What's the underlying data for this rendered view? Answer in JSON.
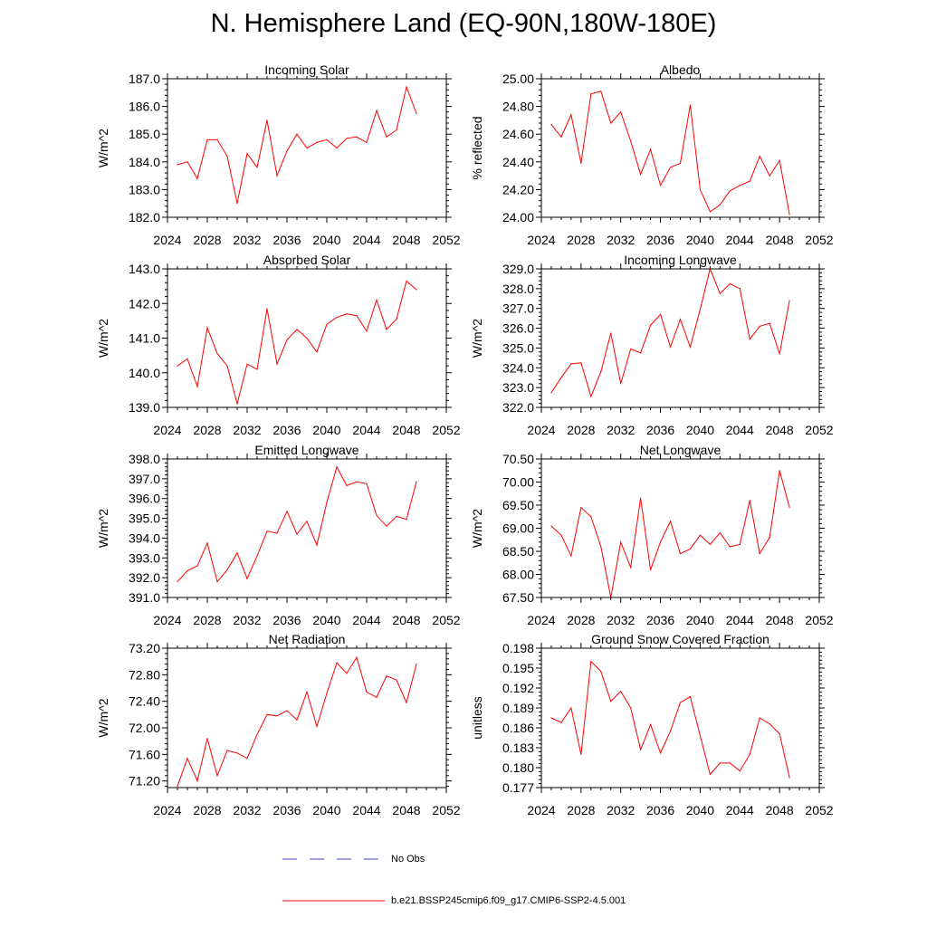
{
  "figure": {
    "title": "N. Hemisphere Land (EQ-90N,180W-180E)"
  },
  "colors": {
    "model_line": "#ff0000",
    "obs_line": "#3f3fc8"
  },
  "legend": {
    "obs_label": "No Obs",
    "model_label": "b.e21.BSSP245cmip6.f09_g17.CMIP6-SSP2-4.5.001"
  },
  "chart_data": [
    {
      "type": "line",
      "title": "Incoming Solar",
      "xlabel": "",
      "ylabel": "W/m^2",
      "xlim": [
        2024,
        2052
      ],
      "ylim": [
        182.0,
        187.0
      ],
      "x_ticks": [
        2024,
        2028,
        2032,
        2036,
        2040,
        2044,
        2048,
        2052
      ],
      "y_ticks": [
        "182.0",
        "183.0",
        "184.0",
        "185.0",
        "186.0",
        "187.0"
      ],
      "x": [
        2025,
        2026,
        2027,
        2028,
        2029,
        2030,
        2031,
        2032,
        2033,
        2034,
        2035,
        2036,
        2037,
        2038,
        2039,
        2040,
        2041,
        2042,
        2043,
        2044,
        2045,
        2046,
        2047,
        2048,
        2049
      ],
      "series": [
        {
          "name": "b.e21.BSSP245cmip6.f09_g17.CMIP6-SSP2-4.5.001",
          "values": [
            183.9,
            184.0,
            183.4,
            184.8,
            184.8,
            184.2,
            182.5,
            184.3,
            183.8,
            185.5,
            183.5,
            184.4,
            185.0,
            184.5,
            184.7,
            184.8,
            184.5,
            184.85,
            184.9,
            184.7,
            185.85,
            184.9,
            185.15,
            186.7,
            185.75
          ]
        }
      ]
    },
    {
      "type": "line",
      "title": "Albedo",
      "xlabel": "",
      "ylabel": "% reflected",
      "xlim": [
        2024,
        2052
      ],
      "ylim": [
        24.0,
        25.0
      ],
      "x_ticks": [
        2024,
        2028,
        2032,
        2036,
        2040,
        2044,
        2048,
        2052
      ],
      "y_ticks": [
        "24.00",
        "24.20",
        "24.40",
        "24.60",
        "24.80",
        "25.00"
      ],
      "x": [
        2025,
        2026,
        2027,
        2028,
        2029,
        2030,
        2031,
        2032,
        2033,
        2034,
        2035,
        2036,
        2037,
        2038,
        2039,
        2040,
        2041,
        2042,
        2043,
        2044,
        2045,
        2046,
        2047,
        2048,
        2049
      ],
      "series": [
        {
          "name": "b.e21.BSSP245cmip6.f09_g17.CMIP6-SSP2-4.5.001",
          "values": [
            24.67,
            24.58,
            24.74,
            24.39,
            24.89,
            24.91,
            24.68,
            24.76,
            24.55,
            24.31,
            24.49,
            24.23,
            24.36,
            24.39,
            24.81,
            24.2,
            24.04,
            24.09,
            24.19,
            24.23,
            24.26,
            24.44,
            24.3,
            24.41,
            24.02
          ]
        }
      ]
    },
    {
      "type": "line",
      "title": "Absorbed Solar",
      "xlabel": "",
      "ylabel": "W/m^2",
      "xlim": [
        2024,
        2052
      ],
      "ylim": [
        139.0,
        143.0
      ],
      "x_ticks": [
        2024,
        2028,
        2032,
        2036,
        2040,
        2044,
        2048,
        2052
      ],
      "y_ticks": [
        "139.0",
        "140.0",
        "141.0",
        "142.0",
        "143.0"
      ],
      "x": [
        2025,
        2026,
        2027,
        2028,
        2029,
        2030,
        2031,
        2032,
        2033,
        2034,
        2035,
        2036,
        2037,
        2038,
        2039,
        2040,
        2041,
        2042,
        2043,
        2044,
        2045,
        2046,
        2047,
        2048,
        2049
      ],
      "series": [
        {
          "name": "b.e21.BSSP245cmip6.f09_g17.CMIP6-SSP2-4.5.001",
          "values": [
            140.2,
            140.4,
            139.6,
            141.3,
            140.55,
            140.2,
            139.1,
            140.25,
            140.1,
            141.85,
            140.25,
            140.95,
            141.25,
            141.0,
            140.6,
            141.4,
            141.6,
            141.7,
            141.65,
            141.2,
            142.1,
            141.25,
            141.55,
            142.65,
            142.4
          ]
        }
      ]
    },
    {
      "type": "line",
      "title": "Incoming Longwave",
      "xlabel": "",
      "ylabel": "W/m^2",
      "xlim": [
        2024,
        2052
      ],
      "ylim": [
        322.0,
        329.0
      ],
      "x_ticks": [
        2024,
        2028,
        2032,
        2036,
        2040,
        2044,
        2048,
        2052
      ],
      "y_ticks": [
        "322.0",
        "323.0",
        "324.0",
        "325.0",
        "326.0",
        "327.0",
        "328.0",
        "329.0"
      ],
      "x": [
        2025,
        2026,
        2027,
        2028,
        2029,
        2030,
        2031,
        2032,
        2033,
        2034,
        2035,
        2036,
        2037,
        2038,
        2039,
        2040,
        2041,
        2042,
        2043,
        2044,
        2045,
        2046,
        2047,
        2048,
        2049
      ],
      "series": [
        {
          "name": "b.e21.BSSP245cmip6.f09_g17.CMIP6-SSP2-4.5.001",
          "values": [
            322.75,
            323.5,
            324.2,
            324.25,
            322.55,
            323.8,
            325.75,
            323.2,
            324.95,
            324.75,
            326.15,
            326.7,
            325.05,
            326.45,
            325.05,
            326.95,
            329.0,
            327.75,
            328.25,
            328.0,
            325.45,
            326.1,
            326.25,
            324.7,
            327.4
          ]
        }
      ]
    },
    {
      "type": "line",
      "title": "Emitted Longwave",
      "xlabel": "",
      "ylabel": "W/m^2",
      "xlim": [
        2024,
        2052
      ],
      "ylim": [
        391.0,
        398.0
      ],
      "x_ticks": [
        2024,
        2028,
        2032,
        2036,
        2040,
        2044,
        2048,
        2052
      ],
      "y_ticks": [
        "391.0",
        "392.0",
        "393.0",
        "394.0",
        "395.0",
        "396.0",
        "397.0",
        "398.0"
      ],
      "x": [
        2025,
        2026,
        2027,
        2028,
        2029,
        2030,
        2031,
        2032,
        2033,
        2034,
        2035,
        2036,
        2037,
        2038,
        2039,
        2040,
        2041,
        2042,
        2043,
        2044,
        2045,
        2046,
        2047,
        2048,
        2049
      ],
      "series": [
        {
          "name": "b.e21.BSSP245cmip6.f09_g17.CMIP6-SSP2-4.5.001",
          "values": [
            391.8,
            392.35,
            392.6,
            393.75,
            391.8,
            392.4,
            393.25,
            391.95,
            393.1,
            394.35,
            394.25,
            395.35,
            394.2,
            394.85,
            393.65,
            395.8,
            397.6,
            396.65,
            396.85,
            396.75,
            395.15,
            394.6,
            395.1,
            394.95,
            396.85
          ]
        }
      ]
    },
    {
      "type": "line",
      "title": "Net Longwave",
      "xlabel": "",
      "ylabel": "W/m^2",
      "xlim": [
        2024,
        2052
      ],
      "ylim": [
        67.5,
        70.5
      ],
      "x_ticks": [
        2024,
        2028,
        2032,
        2036,
        2040,
        2044,
        2048,
        2052
      ],
      "y_ticks": [
        "67.50",
        "68.00",
        "68.50",
        "69.00",
        "69.50",
        "70.00",
        "70.50"
      ],
      "x": [
        2025,
        2026,
        2027,
        2028,
        2029,
        2030,
        2031,
        2032,
        2033,
        2034,
        2035,
        2036,
        2037,
        2038,
        2039,
        2040,
        2041,
        2042,
        2043,
        2044,
        2045,
        2046,
        2047,
        2048,
        2049
      ],
      "series": [
        {
          "name": "b.e21.BSSP245cmip6.f09_g17.CMIP6-SSP2-4.5.001",
          "values": [
            69.05,
            68.85,
            68.4,
            69.45,
            69.25,
            68.6,
            67.5,
            68.7,
            68.15,
            69.65,
            68.1,
            68.7,
            69.15,
            68.45,
            68.55,
            68.85,
            68.65,
            68.9,
            68.6,
            68.65,
            69.6,
            68.45,
            68.8,
            70.25,
            69.45
          ]
        }
      ]
    },
    {
      "type": "line",
      "title": "Net Radiation",
      "xlabel": "",
      "ylabel": "W/m^2",
      "xlim": [
        2024,
        2052
      ],
      "ylim": [
        71.1,
        73.2
      ],
      "x_ticks": [
        2024,
        2028,
        2032,
        2036,
        2040,
        2044,
        2048,
        2052
      ],
      "y_ticks": [
        "71.20",
        "71.60",
        "72.00",
        "72.40",
        "72.80",
        "73.20"
      ],
      "x": [
        2025,
        2026,
        2027,
        2028,
        2029,
        2030,
        2031,
        2032,
        2033,
        2034,
        2035,
        2036,
        2037,
        2038,
        2039,
        2040,
        2041,
        2042,
        2043,
        2044,
        2045,
        2046,
        2047,
        2048,
        2049
      ],
      "series": [
        {
          "name": "b.e21.BSSP245cmip6.f09_g17.CMIP6-SSP2-4.5.001",
          "values": [
            71.12,
            71.54,
            71.2,
            71.84,
            71.28,
            71.66,
            71.62,
            71.54,
            71.9,
            72.2,
            72.18,
            72.26,
            72.12,
            72.54,
            72.02,
            72.52,
            72.98,
            72.82,
            73.06,
            72.54,
            72.46,
            72.78,
            72.72,
            72.38,
            72.96
          ]
        }
      ]
    },
    {
      "type": "line",
      "title": "Ground Snow Covered Fraction",
      "xlabel": "",
      "ylabel": "unitless",
      "xlim": [
        2024,
        2052
      ],
      "ylim": [
        0.177,
        0.198
      ],
      "x_ticks": [
        2024,
        2028,
        2032,
        2036,
        2040,
        2044,
        2048,
        2052
      ],
      "y_ticks": [
        "0.177",
        "0.180",
        "0.183",
        "0.186",
        "0.189",
        "0.192",
        "0.195",
        "0.198"
      ],
      "x": [
        2025,
        2026,
        2027,
        2028,
        2029,
        2030,
        2031,
        2032,
        2033,
        2034,
        2035,
        2036,
        2037,
        2038,
        2039,
        2040,
        2041,
        2042,
        2043,
        2044,
        2045,
        2046,
        2047,
        2048,
        2049
      ],
      "series": [
        {
          "name": "b.e21.BSSP245cmip6.f09_g17.CMIP6-SSP2-4.5.001",
          "values": [
            0.1875,
            0.1868,
            0.189,
            0.182,
            0.196,
            0.1945,
            0.19,
            0.1915,
            0.189,
            0.1827,
            0.1865,
            0.1822,
            0.1855,
            0.1898,
            0.1907,
            0.1848,
            0.179,
            0.1807,
            0.1807,
            0.1795,
            0.182,
            0.1875,
            0.1866,
            0.1851,
            0.1785
          ]
        }
      ]
    }
  ]
}
